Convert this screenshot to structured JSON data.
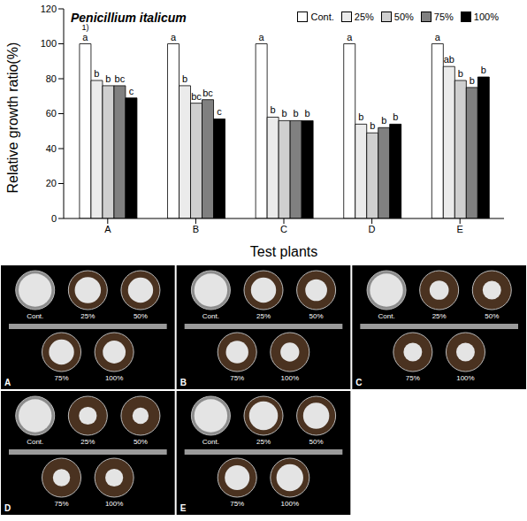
{
  "chart_data": {
    "type": "bar",
    "title": "Penicillium italicum",
    "x_label": "Test plants",
    "y_label": "Relative growth ratio(%)",
    "categories": [
      "A",
      "B",
      "C",
      "D",
      "E"
    ],
    "series": [
      {
        "name": "Cont.",
        "color": "#ffffff",
        "values": [
          100,
          100,
          100,
          100,
          100
        ],
        "letters": [
          "a",
          "a",
          "a",
          "a",
          "a"
        ]
      },
      {
        "name": "25%",
        "color": "#ebebeb",
        "values": [
          79,
          76,
          58,
          54,
          87
        ],
        "letters": [
          "b",
          "b",
          "b",
          "b",
          "ab"
        ]
      },
      {
        "name": "50%",
        "color": "#cfcfcf",
        "values": [
          76,
          66,
          56,
          49,
          79
        ],
        "letters": [
          "b",
          "bc",
          "b",
          "b",
          "b"
        ]
      },
      {
        "name": "75%",
        "color": "#808080",
        "values": [
          76,
          68,
          56,
          52,
          75
        ],
        "letters": [
          "bc",
          "bc",
          "b",
          "b",
          "b"
        ]
      },
      {
        "name": "100%",
        "color": "#000000",
        "values": [
          69,
          57,
          56,
          54,
          81
        ],
        "letters": [
          "c",
          "c",
          "b",
          "b",
          "b"
        ]
      }
    ],
    "ylim": [
      0,
      120
    ],
    "yticks": [
      0,
      20,
      40,
      60,
      80,
      100,
      120
    ],
    "grid": false,
    "legend": "upper right",
    "annotation": "1)"
  },
  "plates": {
    "panels": [
      "A",
      "B",
      "C",
      "D",
      "E"
    ],
    "labels": [
      "Cont.",
      "25%",
      "50%",
      "75%",
      "100%"
    ]
  }
}
